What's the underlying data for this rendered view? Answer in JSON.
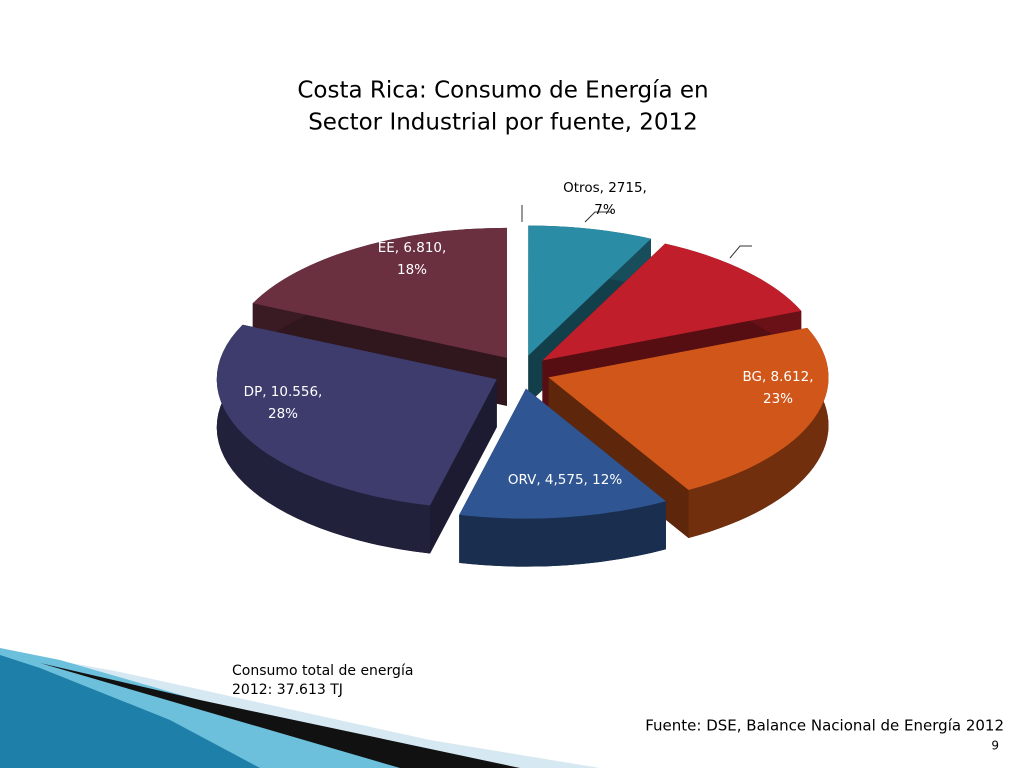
{
  "chart_data": {
    "type": "pie3d",
    "title": [
      "Costa Rica: Consumo de Energía en",
      "Sector Industrial por fuente, 2012"
    ],
    "values": [
      2715,
      4345,
      8612,
      4575,
      10556,
      6810
    ],
    "value_labels": [
      "Otros, 2715, 7%",
      null,
      "BG, 8.612, 23%",
      "ORV, 4,575, 12%",
      "DP, 10.556, 28%",
      "EE, 6.810, 18%"
    ],
    "colors": [
      "#2b8ca6",
      "#bf1e2a",
      "#d0561a",
      "#2f5592",
      "#3e3c6c",
      "#6a3040"
    ]
  },
  "total_note": [
    "Consumo total de energía",
    "2012: 37.613 TJ"
  ],
  "source": "Fuente: DSE, Balance Nacional de Energía 2012",
  "page_number": 9
}
